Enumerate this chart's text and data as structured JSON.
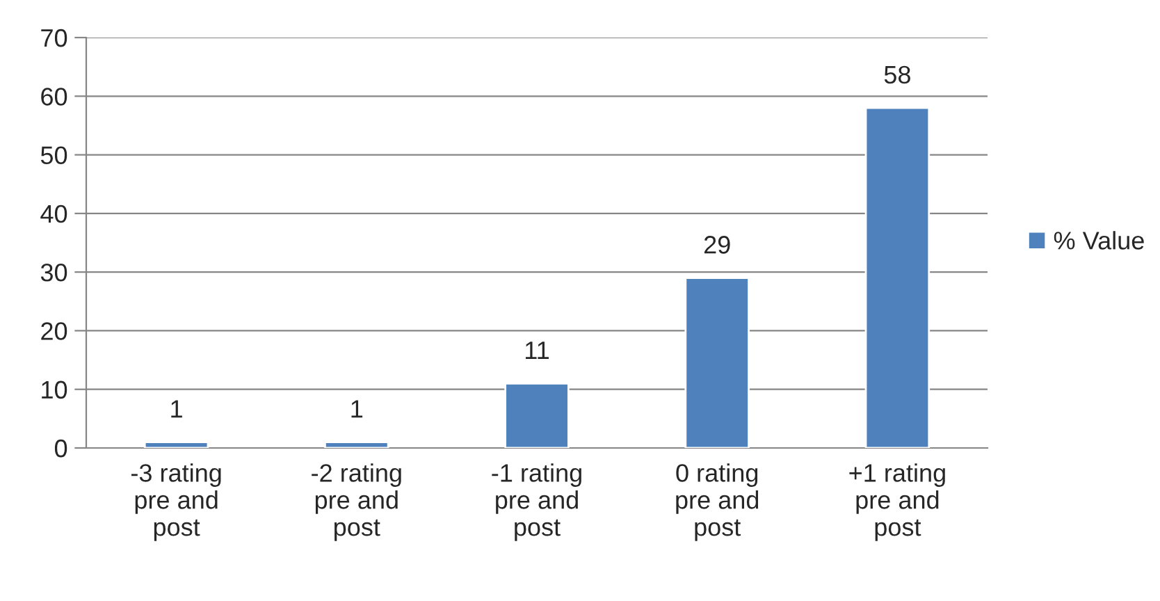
{
  "chart_data": {
    "type": "bar",
    "categories": [
      "-3 rating\npre and\npost",
      "-2 rating\npre and\npost",
      "-1 rating\npre and\npost",
      "0 rating\npre and\npost",
      "+1 rating\npre and\npost"
    ],
    "series": [
      {
        "name": "% Value",
        "color": "#4f81bd",
        "values": [
          1,
          1,
          11,
          29,
          58
        ]
      }
    ],
    "ylim": [
      0,
      70
    ],
    "yticks": [
      0,
      10,
      20,
      30,
      40,
      50,
      60,
      70
    ],
    "grid": "y",
    "legend": "right",
    "data_labels": true
  }
}
